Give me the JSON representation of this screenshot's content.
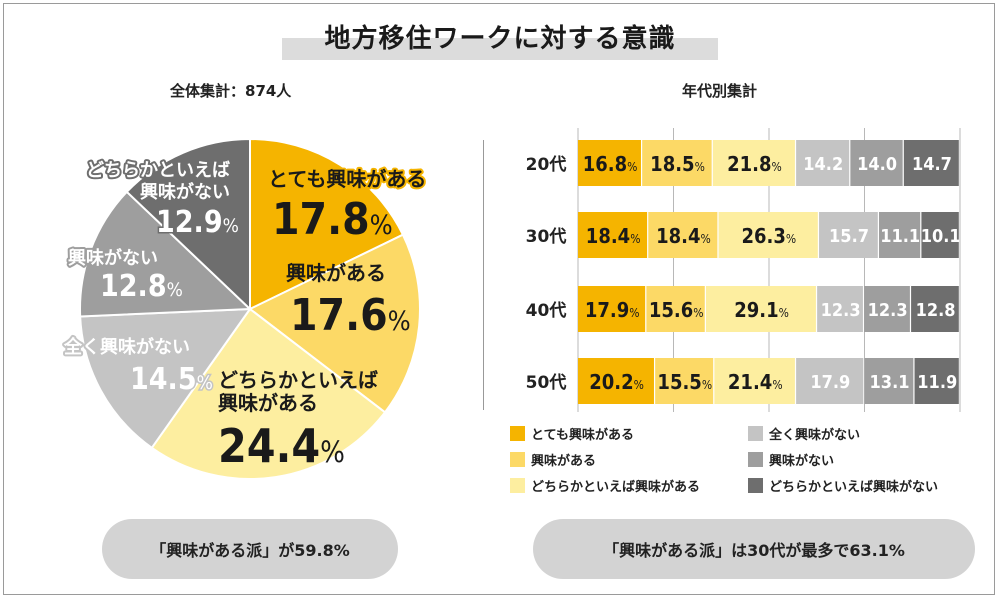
{
  "title": "地方移住ワークに対する意識",
  "left_subtitle": "全体集計：874人",
  "right_subtitle": "年代別集計",
  "colors": {
    "very": "#f5b400",
    "interested": "#fcd966",
    "rather": "#fdeea0",
    "not_at_all": "#c4c4c4",
    "not": "#9e9e9e",
    "rather_not": "#6e6e6e"
  },
  "chart_data": [
    {
      "type": "pie",
      "title": "全体集計：874人",
      "slices": [
        {
          "label": "とても興味がある",
          "value": 17.8,
          "display": "17.8",
          "color_key": "very"
        },
        {
          "label": "興味がある",
          "value": 17.6,
          "display": "17.6",
          "color_key": "interested"
        },
        {
          "label": "どちらかといえば興味がある",
          "label_line1": "どちらかといえば",
          "label_line2": "興味がある",
          "value": 24.4,
          "display": "24.4",
          "color_key": "rather"
        },
        {
          "label": "全く興味がない",
          "value": 14.5,
          "display": "14.5",
          "color_key": "not_at_all"
        },
        {
          "label": "興味がない",
          "value": 12.8,
          "display": "12.8",
          "color_key": "not"
        },
        {
          "label": "どちらかといえば興味がない",
          "label_line1": "どちらかといえば",
          "label_line2": "興味がない",
          "value": 12.9,
          "display": "12.9",
          "color_key": "rather_not"
        }
      ],
      "unit": "%"
    },
    {
      "type": "bar",
      "orientation": "horizontal-stacked",
      "title": "年代別集計",
      "categories": [
        "20代",
        "30代",
        "40代",
        "50代"
      ],
      "series": [
        {
          "name": "とても興味がある",
          "color_key": "very",
          "values": [
            16.8,
            18.4,
            17.9,
            20.2
          ],
          "labels": [
            "16.8",
            "18.4",
            "17.9",
            "20.2"
          ],
          "show_percent": true
        },
        {
          "name": "興味がある",
          "color_key": "interested",
          "values": [
            18.5,
            18.4,
            15.6,
            15.5
          ],
          "labels": [
            "18.5",
            "18.4",
            "15.6",
            "15.5"
          ],
          "show_percent": true
        },
        {
          "name": "どちらかといえば興味がある",
          "color_key": "rather",
          "values": [
            21.8,
            26.3,
            29.1,
            21.4
          ],
          "labels": [
            "21.8",
            "26.3",
            "29.1",
            "21.4"
          ],
          "show_percent": true
        },
        {
          "name": "全く興味がない",
          "color_key": "not_at_all",
          "values": [
            14.2,
            15.7,
            12.3,
            17.9
          ],
          "labels": [
            "14.2",
            "15.7",
            "12.3",
            "17.9"
          ],
          "show_percent": false
        },
        {
          "name": "興味がない",
          "color_key": "not",
          "values": [
            14.0,
            11.1,
            12.3,
            13.1
          ],
          "labels": [
            "14.0",
            "11.1",
            "12.3",
            "13.1"
          ],
          "show_percent": false
        },
        {
          "name": "どちらかといえば興味がない",
          "color_key": "rather_not",
          "values": [
            14.7,
            10.1,
            12.8,
            11.9
          ],
          "labels": [
            "14.7",
            "10.1",
            "12.8",
            "11.9"
          ],
          "show_percent": false
        }
      ],
      "xlim": [
        0,
        100
      ],
      "grid": true,
      "unit": "%"
    }
  ],
  "percent_sign": "%",
  "legend": [
    {
      "label": "とても興味がある",
      "color_key": "very"
    },
    {
      "label": "全く興味がない",
      "color_key": "not_at_all"
    },
    {
      "label": "興味がある",
      "color_key": "interested"
    },
    {
      "label": "興味がない",
      "color_key": "not"
    },
    {
      "label": "どちらかといえば興味がある",
      "color_key": "rather"
    },
    {
      "label": "どちらかといえば興味がない",
      "color_key": "rather_not"
    }
  ],
  "left_summary": "「興味がある派」が59.8%",
  "right_summary": "「興味がある派」は30代が最多で63.1%"
}
